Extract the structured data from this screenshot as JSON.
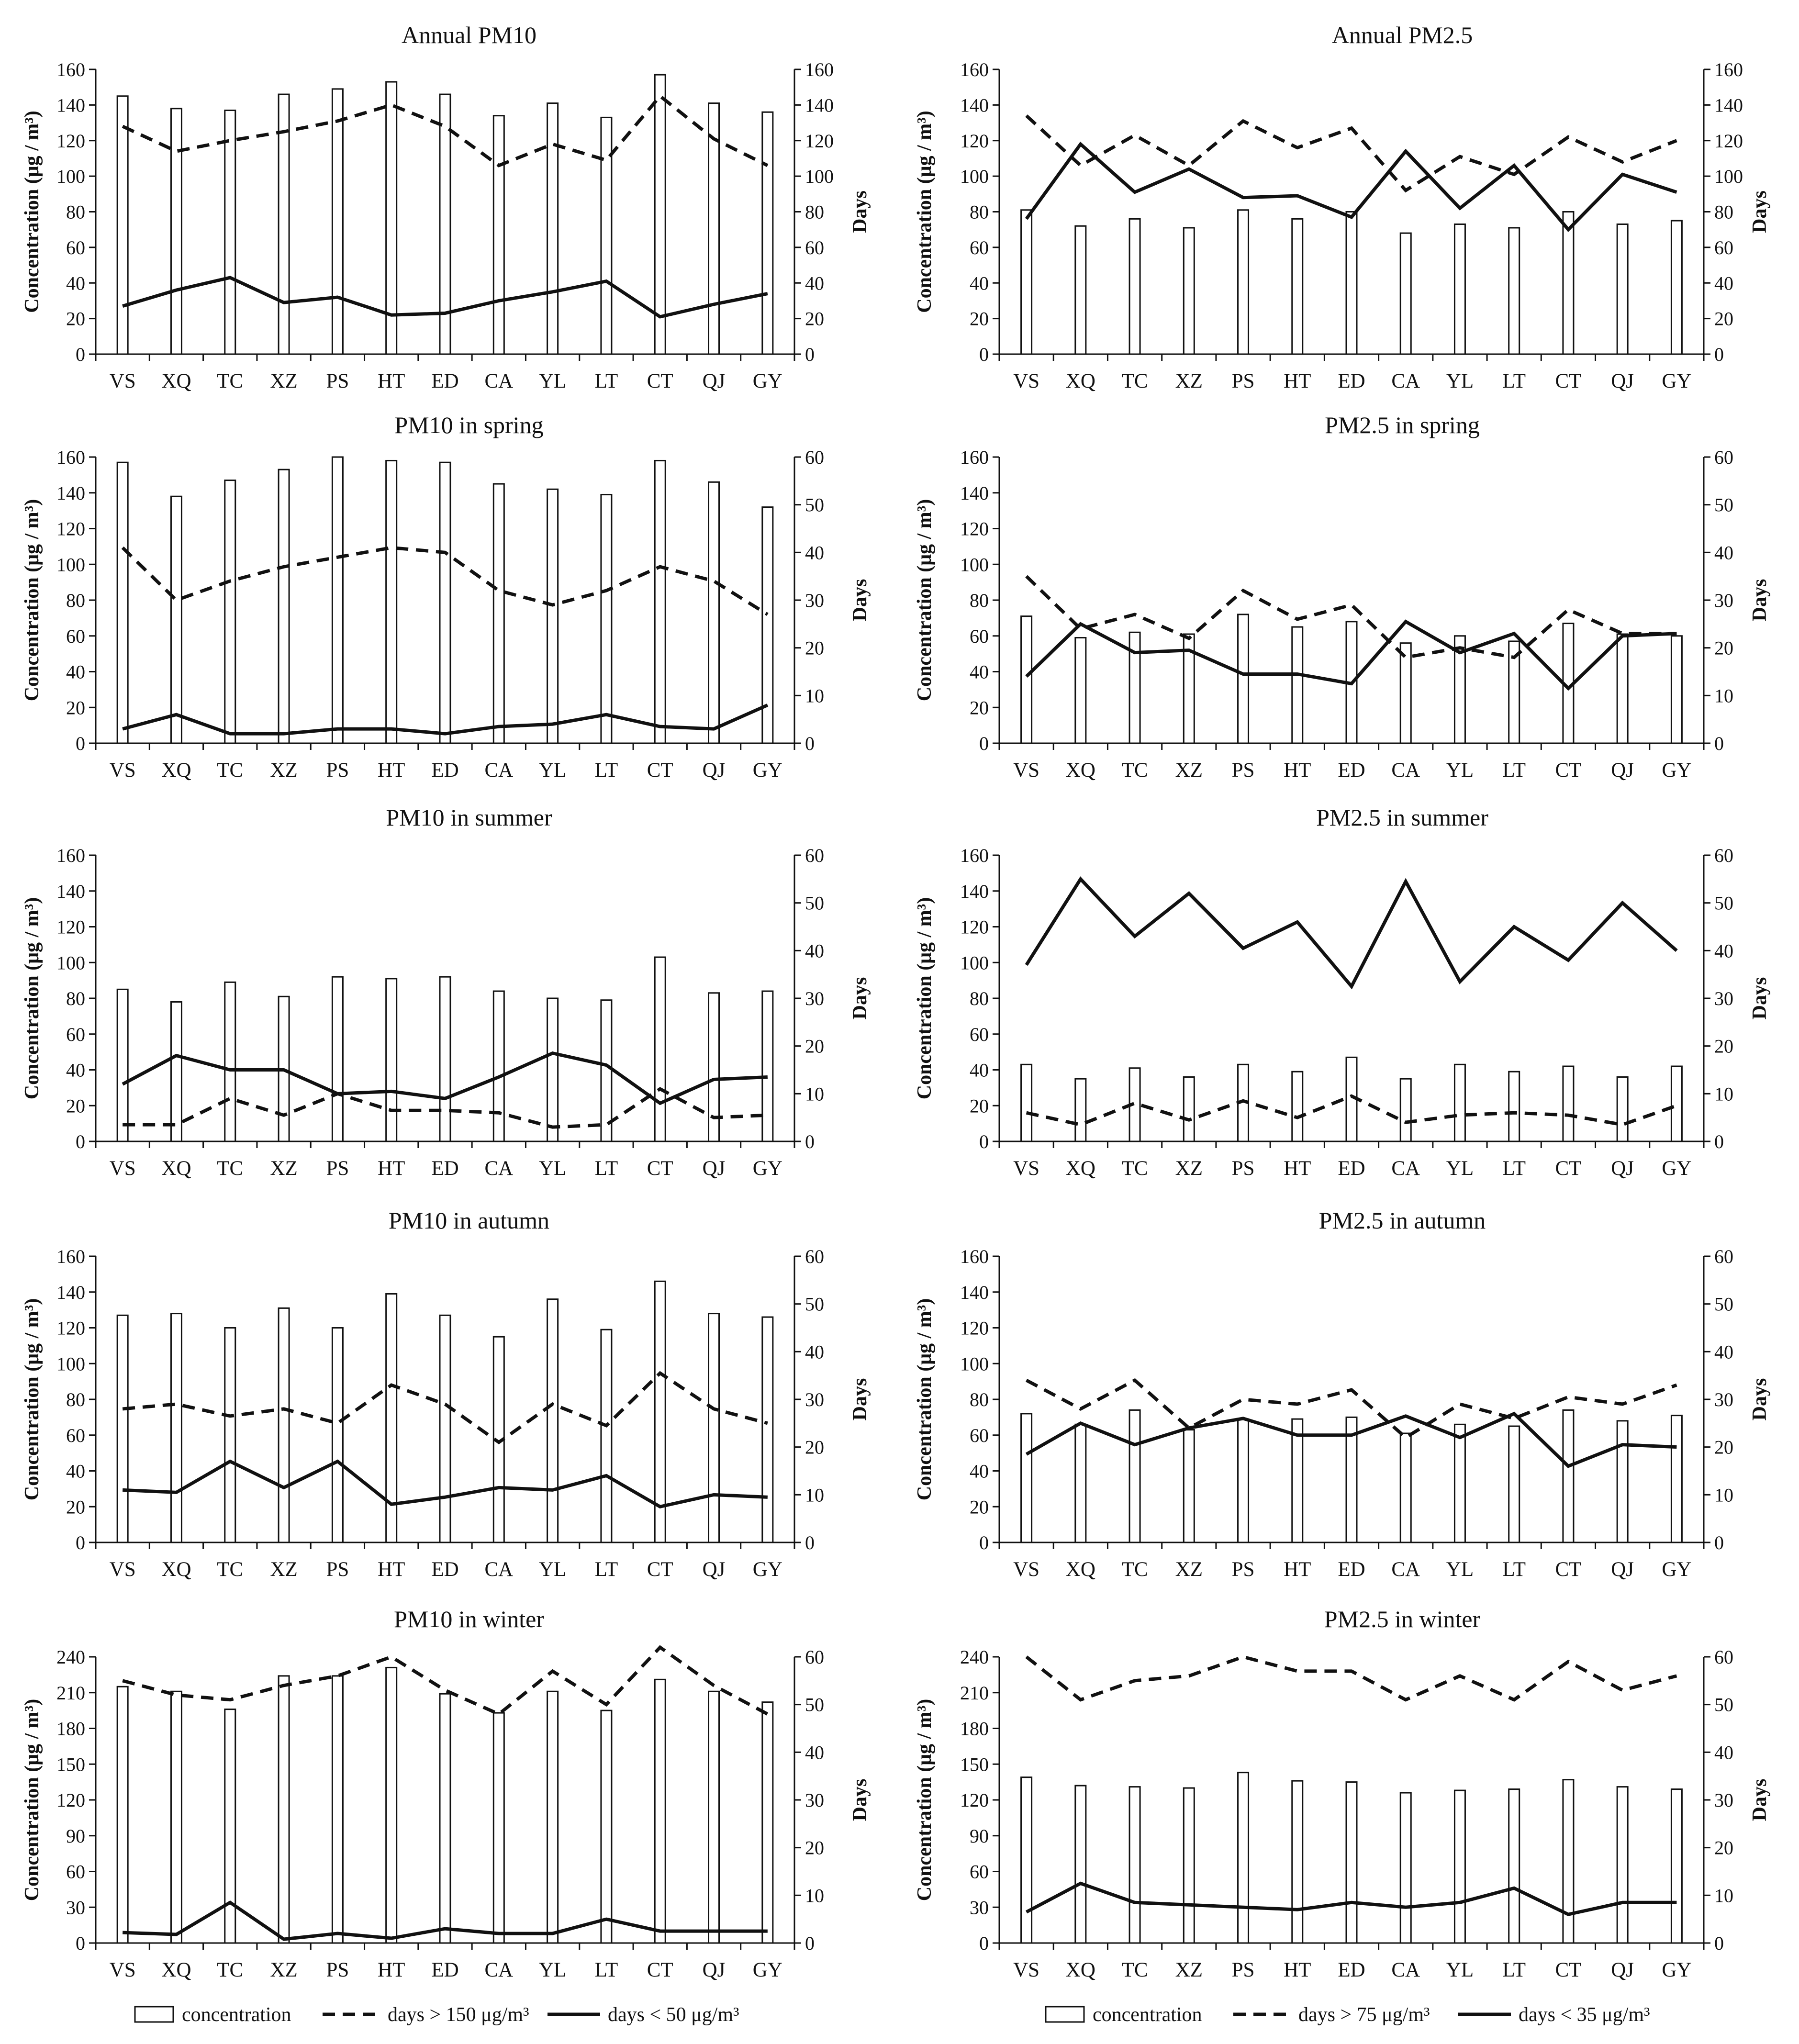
{
  "chart_data": [
    {
      "id": "annual-pm10",
      "type": "bar+line",
      "title": "Annual PM10",
      "categories": [
        "VS",
        "XQ",
        "TC",
        "XZ",
        "PS",
        "HT",
        "ED",
        "CA",
        "YL",
        "LT",
        "CT",
        "QJ",
        "GY"
      ],
      "ylabel": "Concentration (μg / m³)",
      "y2label": "Days",
      "ylim": [
        0,
        160
      ],
      "yticks": [
        0,
        20,
        40,
        60,
        80,
        100,
        120,
        140,
        160
      ],
      "y2lim": [
        0,
        160
      ],
      "y2ticks": [
        0,
        20,
        40,
        60,
        80,
        100,
        120,
        140,
        160
      ],
      "concentration": [
        145,
        138,
        137,
        146,
        149,
        153,
        146,
        134,
        141,
        133,
        157,
        141,
        136
      ],
      "days_high": [
        128,
        114,
        120,
        125,
        131,
        140,
        128,
        106,
        118,
        109,
        145,
        121,
        106
      ],
      "days_low": [
        27,
        36,
        43,
        29,
        32,
        22,
        23,
        30,
        35,
        41,
        21,
        28,
        34
      ]
    },
    {
      "id": "annual-pm25",
      "type": "bar+line",
      "title": "Annual PM2.5",
      "categories": [
        "VS",
        "XQ",
        "TC",
        "XZ",
        "PS",
        "HT",
        "ED",
        "CA",
        "YL",
        "LT",
        "CT",
        "QJ",
        "GY"
      ],
      "ylabel": "Concentration (μg / m³)",
      "y2label": "Days",
      "ylim": [
        0,
        160
      ],
      "yticks": [
        0,
        20,
        40,
        60,
        80,
        100,
        120,
        140,
        160
      ],
      "y2lim": [
        0,
        160
      ],
      "y2ticks": [
        0,
        20,
        40,
        60,
        80,
        100,
        120,
        140,
        160
      ],
      "concentration": [
        81,
        72,
        76,
        71,
        81,
        76,
        80,
        68,
        73,
        71,
        80,
        73,
        75
      ],
      "days_high": [
        134,
        106,
        123,
        106,
        131,
        116,
        127,
        92,
        111,
        101,
        122,
        108,
        120
      ],
      "days_low": [
        76,
        118,
        91,
        104,
        88,
        89,
        77,
        114,
        82,
        106,
        70,
        101,
        91
      ]
    },
    {
      "id": "pm10-spring",
      "type": "bar+line",
      "title": "PM10 in spring",
      "categories": [
        "VS",
        "XQ",
        "TC",
        "XZ",
        "PS",
        "HT",
        "ED",
        "CA",
        "YL",
        "LT",
        "CT",
        "QJ",
        "GY"
      ],
      "ylabel": "Concentration (μg / m³)",
      "y2label": "Days",
      "ylim": [
        0,
        160
      ],
      "yticks": [
        0,
        20,
        40,
        60,
        80,
        100,
        120,
        140,
        160
      ],
      "y2lim": [
        0,
        60
      ],
      "y2ticks": [
        0,
        10,
        20,
        30,
        40,
        50,
        60
      ],
      "concentration": [
        157,
        138,
        147,
        153,
        160,
        158,
        157,
        145,
        142,
        139,
        158,
        146,
        132
      ],
      "days_high": [
        41,
        30,
        34,
        37,
        39,
        41,
        40,
        32,
        29,
        32,
        37,
        34,
        27
      ],
      "days_low": [
        3,
        6,
        2,
        2,
        3,
        3,
        2,
        3.5,
        4,
        6,
        3.5,
        3,
        8
      ]
    },
    {
      "id": "pm25-spring",
      "type": "bar+line",
      "title": "PM2.5 in spring",
      "categories": [
        "VS",
        "XQ",
        "TC",
        "XZ",
        "PS",
        "HT",
        "ED",
        "CA",
        "YL",
        "LT",
        "CT",
        "QJ",
        "GY"
      ],
      "ylabel": "Concentration (μg / m³)",
      "y2label": "Days",
      "ylim": [
        0,
        160
      ],
      "yticks": [
        0,
        20,
        40,
        60,
        80,
        100,
        120,
        140,
        160
      ],
      "y2lim": [
        0,
        60
      ],
      "y2ticks": [
        0,
        10,
        20,
        30,
        40,
        50,
        60
      ],
      "concentration": [
        71,
        59,
        62,
        61,
        72,
        65,
        68,
        56,
        60,
        57,
        67,
        61,
        60
      ],
      "days_high": [
        35,
        24,
        27,
        22,
        32,
        26,
        29,
        18,
        20,
        18,
        28,
        23,
        23
      ],
      "days_low": [
        14,
        25,
        19,
        19.5,
        14.5,
        14.5,
        12.5,
        25.5,
        19,
        23,
        11.5,
        22.5,
        23
      ]
    },
    {
      "id": "pm10-summer",
      "type": "bar+line",
      "title": "PM10 in summer",
      "categories": [
        "VS",
        "XQ",
        "TC",
        "XZ",
        "PS",
        "HT",
        "ED",
        "CA",
        "YL",
        "LT",
        "CT",
        "QJ",
        "GY"
      ],
      "ylabel": "Concentration (μg / m³)",
      "y2label": "Days",
      "ylim": [
        0,
        160
      ],
      "yticks": [
        0,
        20,
        40,
        60,
        80,
        100,
        120,
        140,
        160
      ],
      "y2lim": [
        0,
        60
      ],
      "y2ticks": [
        0,
        10,
        20,
        30,
        40,
        50,
        60
      ],
      "concentration": [
        85,
        78,
        89,
        81,
        92,
        91,
        92,
        84,
        80,
        79,
        103,
        83,
        84
      ],
      "days_high": [
        3.5,
        3.5,
        9,
        5.5,
        10,
        6.5,
        6.5,
        6,
        3,
        3.5,
        11,
        5,
        5.5
      ],
      "days_low": [
        12,
        18,
        15,
        15,
        10,
        10.5,
        9,
        13.5,
        18.5,
        16,
        8,
        13,
        13.5
      ]
    },
    {
      "id": "pm25-summer",
      "type": "bar+line",
      "title": "PM2.5 in summer",
      "categories": [
        "VS",
        "XQ",
        "TC",
        "XZ",
        "PS",
        "HT",
        "ED",
        "CA",
        "YL",
        "LT",
        "CT",
        "QJ",
        "GY"
      ],
      "ylabel": "Concentration (μg / m³)",
      "y2label": "Days",
      "ylim": [
        0,
        160
      ],
      "yticks": [
        0,
        20,
        40,
        60,
        80,
        100,
        120,
        140,
        160
      ],
      "y2lim": [
        0,
        60
      ],
      "y2ticks": [
        0,
        10,
        20,
        30,
        40,
        50,
        60
      ],
      "concentration": [
        43,
        35,
        41,
        36,
        43,
        39,
        47,
        35,
        43,
        39,
        42,
        36,
        42
      ],
      "days_high": [
        6,
        3.5,
        8,
        4.5,
        8.5,
        5,
        9.5,
        4,
        5.5,
        6,
        5.5,
        3.5,
        7.5
      ],
      "days_low": [
        37,
        55,
        43,
        52,
        40.5,
        46,
        32.5,
        54.5,
        33.5,
        45,
        38,
        50,
        40
      ]
    },
    {
      "id": "pm10-autumn",
      "type": "bar+line",
      "title": "PM10 in autumn",
      "categories": [
        "VS",
        "XQ",
        "TC",
        "XZ",
        "PS",
        "HT",
        "ED",
        "CA",
        "YL",
        "LT",
        "CT",
        "QJ",
        "GY"
      ],
      "ylabel": "Concentration (μg / m³)",
      "y2label": "Days",
      "ylim": [
        0,
        160
      ],
      "yticks": [
        0,
        20,
        40,
        60,
        80,
        100,
        120,
        140,
        160
      ],
      "y2lim": [
        0,
        60
      ],
      "y2ticks": [
        0,
        10,
        20,
        30,
        40,
        50,
        60
      ],
      "concentration": [
        127,
        128,
        120,
        131,
        120,
        139,
        127,
        115,
        136,
        119,
        146,
        128,
        126
      ],
      "days_high": [
        28,
        29,
        26.5,
        28,
        25,
        33,
        29,
        21,
        29,
        24.5,
        35.5,
        28,
        25
      ],
      "days_low": [
        11,
        10.5,
        17,
        11.5,
        17,
        8,
        9.5,
        11.5,
        11,
        14,
        7.5,
        10,
        9.5
      ]
    },
    {
      "id": "pm25-autumn",
      "type": "bar+line",
      "title": "PM2.5 in autumn",
      "categories": [
        "VS",
        "XQ",
        "TC",
        "XZ",
        "PS",
        "HT",
        "ED",
        "CA",
        "YL",
        "LT",
        "CT",
        "QJ",
        "GY"
      ],
      "ylabel": "Concentration (μg / m³)",
      "y2label": "Days",
      "ylim": [
        0,
        160
      ],
      "yticks": [
        0,
        20,
        40,
        60,
        80,
        100,
        120,
        140,
        160
      ],
      "y2lim": [
        0,
        60
      ],
      "y2ticks": [
        0,
        10,
        20,
        30,
        40,
        50,
        60
      ],
      "concentration": [
        72,
        66,
        74,
        63,
        69,
        69,
        70,
        61,
        66,
        65,
        74,
        68,
        71
      ],
      "days_high": [
        34,
        28,
        34,
        24,
        30,
        29,
        32,
        22,
        29,
        26,
        30.5,
        29,
        33
      ],
      "days_low": [
        18.5,
        25,
        20.5,
        24,
        26,
        22.5,
        22.5,
        26.5,
        22,
        27,
        16,
        20.5,
        20
      ]
    },
    {
      "id": "pm10-winter",
      "type": "bar+line",
      "title": "PM10 in winter",
      "categories": [
        "VS",
        "XQ",
        "TC",
        "XZ",
        "PS",
        "HT",
        "ED",
        "CA",
        "YL",
        "LT",
        "CT",
        "QJ",
        "GY"
      ],
      "ylabel": "Concentration (μg / m³)",
      "y2label": "Days",
      "ylim": [
        0,
        240
      ],
      "yticks": [
        0,
        30,
        60,
        90,
        120,
        150,
        180,
        210,
        240
      ],
      "y2lim": [
        0,
        60
      ],
      "y2ticks": [
        0,
        10,
        20,
        30,
        40,
        50,
        60
      ],
      "concentration": [
        215,
        211,
        196,
        224,
        224,
        231,
        209,
        193,
        211,
        195,
        221,
        211,
        202
      ],
      "days_high": [
        55,
        52,
        51,
        54,
        56,
        60,
        53,
        48,
        57,
        50,
        62,
        54,
        48
      ],
      "days_low": [
        2.2,
        1.8,
        8.5,
        0.8,
        2,
        1,
        3,
        2,
        2,
        5,
        2.5,
        2.5,
        2.5
      ]
    },
    {
      "id": "pm25-winter",
      "type": "bar+line",
      "title": "PM2.5 in winter",
      "categories": [
        "VS",
        "XQ",
        "TC",
        "XZ",
        "PS",
        "HT",
        "ED",
        "CA",
        "YL",
        "LT",
        "CT",
        "QJ",
        "GY"
      ],
      "ylabel": "Concentration (μg / m³)",
      "y2label": "Days",
      "ylim": [
        0,
        240
      ],
      "yticks": [
        0,
        30,
        60,
        90,
        120,
        150,
        180,
        210,
        240
      ],
      "y2lim": [
        0,
        60
      ],
      "y2ticks": [
        0,
        10,
        20,
        30,
        40,
        50,
        60
      ],
      "concentration": [
        139,
        132,
        131,
        130,
        143,
        136,
        135,
        126,
        128,
        129,
        137,
        131,
        129
      ],
      "days_high": [
        60,
        51,
        55,
        56,
        60,
        57,
        57,
        51,
        56,
        51,
        59,
        53,
        56
      ],
      "days_low": [
        6.5,
        12.5,
        8.5,
        8,
        7.5,
        7,
        8.5,
        7.5,
        8.5,
        11.5,
        6,
        8.5,
        8.5
      ]
    }
  ],
  "legends": {
    "pm10": {
      "concentration": "concentration",
      "high": "days > 150 μg/m³",
      "low": "days < 50 μg/m³"
    },
    "pm25": {
      "concentration": "concentration",
      "high": "days > 75 μg/m³",
      "low": "days < 35 μg/m³"
    }
  },
  "colors": {
    "ink": "#111111",
    "bar_fill": "#ffffff"
  }
}
